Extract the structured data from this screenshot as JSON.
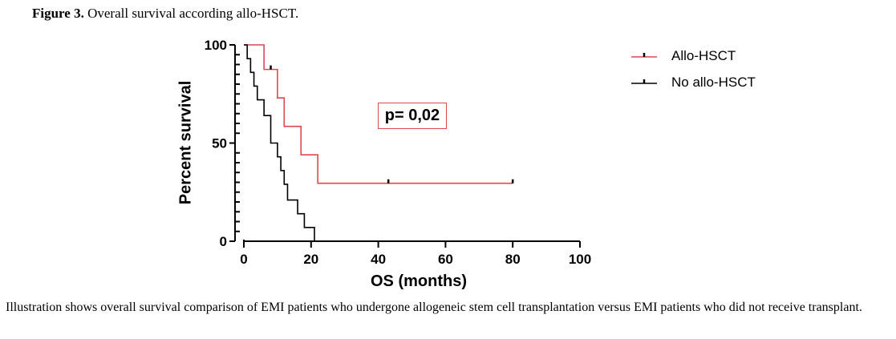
{
  "figure": {
    "label": "Figure 3.",
    "title": "Overall survival according allo-HSCT.",
    "caption": "Illustration shows overall survival comparison of EMI patients who undergone allogeneic stem cell transplantation versus EMI patients who did not receive transplant."
  },
  "chart_data": {
    "type": "line",
    "xlabel": "OS (months)",
    "ylabel": "Percent survival",
    "xlim": [
      0,
      100
    ],
    "ylim": [
      0,
      100
    ],
    "x_ticks": [
      "0",
      "20",
      "40",
      "60",
      "80",
      "100"
    ],
    "y_ticks": [
      "0",
      "50",
      "100"
    ],
    "annotation": "p= 0,02",
    "legend_position": "top-right",
    "series": [
      {
        "name": "Allo-HSCT",
        "color": "#e0464e",
        "step_x": [
          0,
          6,
          10,
          12,
          17,
          22,
          80
        ],
        "step_y": [
          100,
          87.5,
          73,
          58.5,
          44,
          29.5,
          29.5
        ],
        "censored_x": [
          8,
          43,
          80
        ],
        "censored_y": [
          87.5,
          29.5,
          29.5
        ]
      },
      {
        "name": "No allo-HSCT",
        "color": "#000000",
        "step_x": [
          0,
          1,
          2,
          3,
          4,
          6,
          8,
          10,
          11,
          12,
          13,
          16,
          18,
          21,
          23
        ],
        "step_y": [
          100,
          93,
          86,
          79,
          72,
          64,
          50,
          43,
          36,
          29,
          21,
          14,
          7,
          0,
          0
        ],
        "censored_x": [],
        "censored_y": []
      }
    ]
  }
}
